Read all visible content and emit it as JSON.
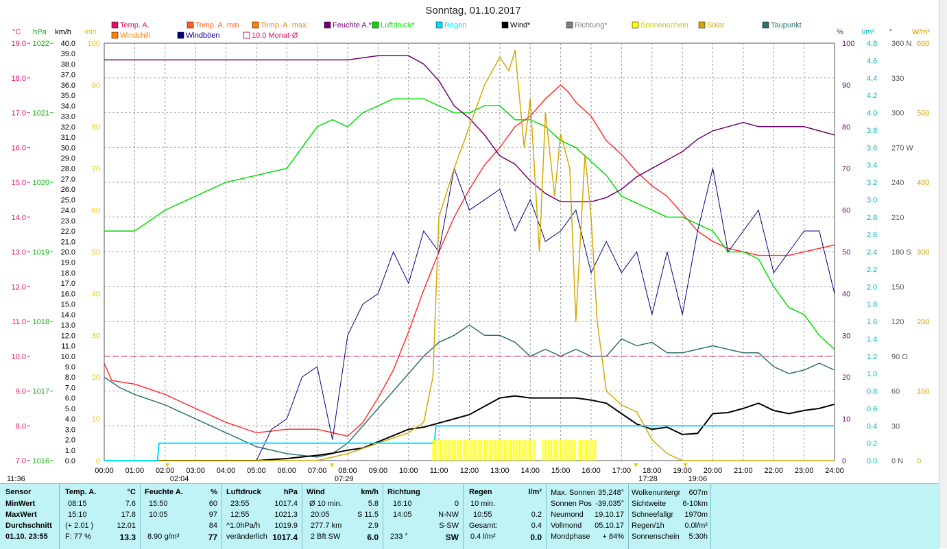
{
  "chart_data": {
    "type": "line",
    "title": "Sonntag, 01.10.2017",
    "x_ticks": [
      "00:00",
      "01:00",
      "02:00",
      "03:00",
      "04:00",
      "05:00",
      "06:00",
      "07:00",
      "08:00",
      "09:00",
      "10:00",
      "11:00",
      "12:00",
      "13:00",
      "14:00",
      "15:00",
      "16:00",
      "17:00",
      "18:00",
      "19:00",
      "20:00",
      "21:00",
      "22:00",
      "23:00",
      "24:00"
    ],
    "xlim": [
      0,
      24
    ],
    "axes": {
      "temp": {
        "unit": "°C",
        "range": [
          7.0,
          19.0
        ],
        "color": "#e0106a"
      },
      "pressure": {
        "unit": "hPa",
        "range": [
          1016,
          1022
        ],
        "color": "#10b010"
      },
      "wind": {
        "unit": "km/h",
        "range": [
          0,
          40
        ],
        "color": "#000000"
      },
      "sunshine": {
        "unit": "min",
        "range": [
          0,
          100
        ],
        "color": "#e8c800"
      },
      "humidity": {
        "unit": "%",
        "range": [
          0,
          100
        ],
        "color": "#6a0a6a"
      },
      "rain": {
        "unit": "l/m²",
        "range": [
          0,
          4.8
        ],
        "color": "#00b0c0"
      },
      "direction": {
        "unit": "°",
        "ticks": [
          "0 N",
          "30",
          "60",
          "90 O",
          "120",
          "150",
          "180 S",
          "210",
          "240",
          "270 W",
          "300",
          "330",
          "360 N"
        ],
        "range": [
          0,
          360
        ],
        "color": "#555555"
      },
      "solar": {
        "unit": "W/m²",
        "range": [
          0,
          600
        ],
        "color": "#c8a000"
      }
    },
    "legend": [
      {
        "name": "Temp. A.",
        "color": "#e0106a",
        "style": "box"
      },
      {
        "name": "Temp. A. min",
        "color": "#ff6020",
        "style": "box"
      },
      {
        "name": "Temp. A. max",
        "color": "#ff7f00",
        "style": "box"
      },
      {
        "name": "Feuchte A.*",
        "color": "#700070",
        "style": "box"
      },
      {
        "name": "Luftdruck*",
        "color": "#00dd00",
        "style": "box"
      },
      {
        "name": "Regen",
        "color": "#00e0ff",
        "style": "box"
      },
      {
        "name": "Wind*",
        "color": "#000000",
        "style": "box"
      },
      {
        "name": "Richtung*",
        "color": "#808080",
        "style": "box"
      },
      {
        "name": "Sonnenschein",
        "color": "#ffff00",
        "style": "box"
      },
      {
        "name": "Solar",
        "color": "#d4a800",
        "style": "box"
      },
      {
        "name": "Taupunkt",
        "color": "#2f7070",
        "style": "box"
      },
      {
        "name": "Windchill",
        "color": "#ff8000",
        "style": "box"
      },
      {
        "name": "Windböen",
        "color": "#000080",
        "style": "box"
      },
      {
        "name": "10.0 Monat-Ø",
        "color": "#d0106a",
        "style": "outline"
      }
    ],
    "series": [
      {
        "name": "Temp. A.",
        "axis": "temp",
        "color": "#ff3030",
        "x": [
          0,
          0.25,
          1,
          2,
          3,
          4,
          5,
          6,
          7,
          7.5,
          8,
          8.5,
          9,
          9.5,
          10,
          10.5,
          11,
          11.5,
          12,
          12.5,
          13,
          13.5,
          14,
          14.5,
          15,
          15.25,
          15.5,
          16,
          16.5,
          17,
          17.5,
          18,
          18.5,
          19,
          19.5,
          20,
          20.5,
          21,
          21.5,
          22,
          22.5,
          23,
          23.5,
          24
        ],
        "y": [
          9.8,
          9.3,
          9.2,
          8.9,
          8.5,
          8.1,
          7.8,
          7.9,
          7.9,
          7.8,
          7.7,
          8.1,
          8.8,
          9.6,
          10.7,
          11.9,
          13.0,
          14.0,
          14.8,
          15.5,
          16.0,
          16.6,
          16.9,
          17.4,
          17.8,
          17.6,
          17.3,
          16.9,
          16.2,
          15.8,
          15.3,
          14.9,
          14.6,
          14.1,
          13.6,
          13.3,
          13.1,
          13.0,
          12.9,
          12.9,
          12.9,
          13.0,
          13.1,
          13.2
        ]
      },
      {
        "name": "Taupunkt",
        "axis": "temp",
        "color": "#2f7070",
        "x": [
          0,
          0.5,
          1,
          2,
          3,
          4,
          5,
          6,
          7,
          7.5,
          8,
          8.5,
          9,
          9.5,
          10,
          10.5,
          11,
          11.5,
          12,
          12.5,
          13,
          13.5,
          14,
          14.5,
          15,
          15.5,
          16,
          16.5,
          17,
          17.5,
          18,
          18.5,
          19,
          19.5,
          20,
          20.5,
          21,
          21.5,
          22,
          22.5,
          23,
          23.5,
          24
        ],
        "y": [
          9.4,
          9.1,
          8.9,
          8.6,
          8.2,
          7.8,
          7.4,
          7.2,
          7.1,
          7.2,
          7.5,
          8.0,
          8.5,
          9.0,
          9.5,
          10.0,
          10.4,
          10.6,
          10.9,
          10.6,
          10.6,
          10.4,
          10.0,
          10.2,
          10.0,
          10.2,
          10.0,
          10.0,
          10.5,
          10.3,
          10.4,
          10.1,
          10.1,
          10.2,
          10.3,
          10.2,
          10.1,
          10.1,
          9.7,
          9.5,
          9.6,
          9.8,
          9.6
        ]
      },
      {
        "name": "Luftdruck*",
        "axis": "pressure",
        "color": "#00dd00",
        "x": [
          0,
          1,
          2,
          3,
          4,
          5,
          6,
          6.5,
          7,
          7.5,
          8,
          8.5,
          9,
          9.5,
          10,
          10.5,
          11,
          11.5,
          12,
          12.5,
          13,
          13.5,
          14,
          14.5,
          15,
          15.5,
          16,
          16.5,
          17,
          17.5,
          18,
          18.5,
          19,
          19.5,
          20,
          20.5,
          21,
          21.5,
          22,
          22.5,
          23,
          23.5,
          24
        ],
        "y": [
          1019.3,
          1019.3,
          1019.6,
          1019.8,
          1020.0,
          1020.1,
          1020.2,
          1020.5,
          1020.8,
          1020.9,
          1020.8,
          1021.0,
          1021.1,
          1021.2,
          1021.2,
          1021.2,
          1021.1,
          1021.0,
          1021.0,
          1021.1,
          1021.1,
          1020.9,
          1020.9,
          1020.8,
          1020.6,
          1020.5,
          1020.3,
          1020.1,
          1019.8,
          1019.7,
          1019.6,
          1019.5,
          1019.5,
          1019.4,
          1019.3,
          1019.0,
          1019.0,
          1018.9,
          1018.5,
          1018.2,
          1018.1,
          1017.8,
          1017.6
        ]
      },
      {
        "name": "Feuchte A.*",
        "axis": "humidity",
        "color": "#700070",
        "x": [
          0,
          1,
          2,
          3,
          4,
          5,
          6,
          7,
          8,
          9,
          9.5,
          10,
          10.5,
          11,
          11.5,
          12,
          12.5,
          13,
          13.5,
          14,
          14.5,
          15,
          15.5,
          16,
          16.5,
          17,
          17.5,
          18,
          18.5,
          19,
          19.5,
          20,
          20.5,
          21,
          21.5,
          22,
          22.5,
          23,
          23.5,
          24
        ],
        "y": [
          96,
          96,
          96,
          96,
          96,
          96,
          96,
          96,
          96,
          97,
          97,
          97,
          95,
          91,
          85,
          82,
          78,
          73,
          71,
          67,
          64,
          62,
          62,
          62,
          63,
          65,
          68,
          70,
          72,
          74,
          77,
          79,
          80,
          81,
          80,
          80,
          80,
          80,
          79,
          78
        ]
      },
      {
        "name": "Wind*",
        "axis": "wind",
        "color": "#000000",
        "x": [
          0,
          5,
          6,
          7,
          7.5,
          8,
          8.5,
          9,
          9.5,
          10,
          10.5,
          11,
          11.5,
          12,
          12.5,
          13,
          13.5,
          14,
          14.5,
          15,
          15.5,
          16,
          16.5,
          17,
          17.5,
          18,
          18.5,
          19,
          19.5,
          20,
          20.5,
          21,
          21.5,
          22,
          22.5,
          23,
          23.5,
          24
        ],
        "y": [
          0,
          0,
          0.2,
          0.5,
          0.7,
          1.0,
          1.2,
          1.8,
          2.4,
          3.0,
          3.2,
          3.6,
          4.0,
          4.4,
          5.2,
          6.0,
          6.2,
          6.0,
          6.0,
          6.0,
          6.0,
          5.8,
          5.5,
          4.5,
          3.5,
          3.0,
          3.2,
          2.5,
          2.6,
          4.5,
          4.6,
          5.0,
          5.5,
          4.8,
          4.5,
          4.8,
          5.0,
          5.4
        ]
      },
      {
        "name": "Windböen",
        "axis": "wind",
        "color": "#000080",
        "x": [
          0,
          5,
          5.5,
          6,
          6.5,
          7,
          7.5,
          8,
          8.5,
          9,
          9.5,
          10,
          10.5,
          11,
          11.5,
          12,
          12.5,
          13,
          13.5,
          14,
          14.5,
          15,
          15.5,
          16,
          16.5,
          17,
          17.5,
          18,
          18.5,
          19,
          19.5,
          20,
          20.5,
          21,
          21.5,
          22,
          22.5,
          23,
          23.5,
          24
        ],
        "y": [
          0,
          0,
          3.0,
          4.0,
          8.0,
          9.0,
          2.0,
          12.0,
          15.0,
          16.0,
          20.0,
          17.0,
          22.0,
          20.0,
          28.0,
          24.0,
          25.0,
          26.0,
          22.0,
          25.0,
          21.0,
          22.0,
          24.0,
          18.0,
          21.0,
          18.0,
          20.0,
          14.0,
          20.0,
          14.0,
          22.0,
          28.0,
          20.0,
          22.0,
          24.0,
          18.0,
          20.0,
          22.0,
          22.0,
          16.0
        ]
      },
      {
        "name": "Solar",
        "axis": "solar",
        "color": "#d4a800",
        "x": [
          0,
          7,
          8,
          9,
          10,
          10.5,
          10.8,
          11,
          11.5,
          12,
          12.5,
          13,
          13.3,
          13.5,
          13.8,
          14,
          14.3,
          14.5,
          14.8,
          15,
          15.3,
          15.5,
          15.8,
          16,
          16.2,
          16.5,
          17,
          17.5,
          18,
          18.5,
          19,
          19.5,
          24
        ],
        "y": [
          0,
          0,
          10,
          25,
          40,
          55,
          120,
          350,
          420,
          480,
          540,
          580,
          560,
          590,
          450,
          520,
          300,
          500,
          380,
          470,
          420,
          200,
          440,
          350,
          200,
          100,
          80,
          70,
          30,
          10,
          0,
          0,
          0
        ]
      },
      {
        "name": "Regen",
        "axis": "rain",
        "color": "#00e0ff",
        "x": [
          0,
          1.75,
          1.8,
          10.85,
          10.9,
          24
        ],
        "y": [
          0,
          0,
          0.2,
          0.2,
          0.4,
          0.4
        ]
      },
      {
        "name": "Sonnenschein",
        "axis": "sunshine",
        "color": "#ffff00",
        "x": [
          10.8,
          14.2,
          14.3,
          14.4,
          15.5,
          15.6,
          16.2
        ],
        "y": [
          5,
          5,
          0,
          5,
          5,
          0,
          5
        ]
      },
      {
        "name": "10.0 Monat-Ø",
        "axis": "temp",
        "color": "#d0106a",
        "x": [
          0,
          24
        ],
        "y": [
          10.0,
          10.0
        ]
      }
    ],
    "markers": [
      {
        "label": "02:04",
        "x": 2.07
      },
      {
        "label": "07:29",
        "x": 7.48
      },
      {
        "label": "17:28",
        "x": 17.47
      },
      {
        "label": "19:06",
        "x": 19.1
      }
    ],
    "corner_time": "11:36",
    "grid": true
  },
  "stats": {
    "sensor": {
      "title": "Sensor",
      "labels": [
        "MinWert",
        "MaxWert",
        "Durchschnitt"
      ],
      "date_time": "01.10. 23:55"
    },
    "temp": {
      "title": "Temp. A.",
      "unit": "°C",
      "min_time": "08:15",
      "min": "7.6",
      "max_time": "15:10",
      "max": "17.8",
      "avg_label": "(+ 2.01 )",
      "avg": "12.01",
      "now_label": "F: 77 %",
      "now": "13.3"
    },
    "humidity": {
      "title": "Feuchte A.",
      "unit": "%",
      "min_time": "15:50",
      "min": "60",
      "max_time": "10:05",
      "max": "97",
      "avg": "84",
      "now_label": "8.90 g/m³",
      "now": "77"
    },
    "pressure": {
      "title": "Luftdruck",
      "unit": "hPa",
      "min_time": "23:55",
      "min": "1017.4",
      "max_time": "12:55",
      "max": "1021.3",
      "avg_label": "^1.0hPa/h",
      "avg": "1019.9",
      "now_label": "veränderlich",
      "now": "1017.4"
    },
    "wind": {
      "title": "Wind",
      "unit": "km/h",
      "r1_label": "Ø 10 min.",
      "r1": "5.8",
      "r2_label": "20:05",
      "r2": "S 11.5",
      "r3_label": "277.7 km",
      "r3": "2.9",
      "r4_label": "2 Bft SW",
      "r4": "6.0"
    },
    "direction": {
      "title": "Richtung",
      "r1_label": "16:10",
      "r1": "0",
      "r2_label": "14:05",
      "r2": "N-NW",
      "r3": "S-SW",
      "r4_label": "233 °",
      "r4": "SW"
    },
    "rain": {
      "title": "Regen",
      "unit": "l/m²",
      "r1_label": "10 min.",
      "r2_label": "10:55",
      "r2": "0.2",
      "r3_label": "Gesamt:",
      "r3": "0.4",
      "r4_label": "0.4 l/m²",
      "r4": "0.0"
    },
    "sun": {
      "r1_label": "Max. Sonnen",
      "r1": "35,248°",
      "r2_label": "Sonnen Pos",
      "r2": "-39,035°",
      "r3_label": "Neumond",
      "r3": "19.10.17",
      "r4_label": "Vollmond",
      "r4": "05.10.17",
      "r5_label": "Mondphase",
      "r5": "+ 84%"
    },
    "extra": {
      "r1_label": "Wolkenuntergr",
      "r1": "607m",
      "r2_label": "Sichtweite",
      "r2": "6-10km",
      "r3_label": "Schneefallgr",
      "r3": "1970m",
      "r4_label": "Regen/1h",
      "r4": "0.0l/m²",
      "r5_label": "Sonnenschein",
      "r5": "5:30h"
    }
  }
}
